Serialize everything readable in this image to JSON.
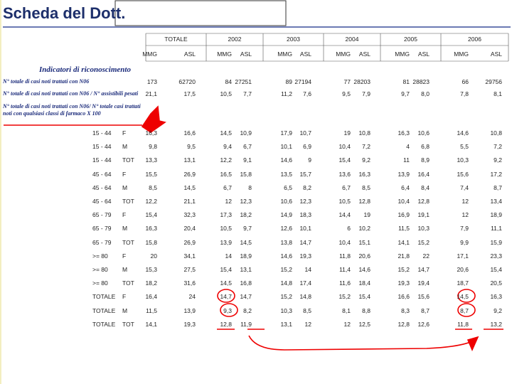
{
  "header": {
    "title": "Scheda del Dott."
  },
  "table": {
    "columns": [
      "TOTALE",
      "2002",
      "2003",
      "2004",
      "2005",
      "2006"
    ],
    "subheaders": [
      "MMG",
      "ASL",
      "MMG",
      "ASL",
      "MMG",
      "ASL",
      "MMG",
      "ASL",
      "MMG",
      "ASL",
      "MMG",
      "ASL"
    ],
    "section_title": "Indicatori di riconoscimento",
    "indicators": [
      {
        "label": "N° totale di casi noti trattati con N06",
        "values": [
          "173",
          "62720",
          "84",
          "27251",
          "89",
          "27194",
          "77",
          "28203",
          "81",
          "28823",
          "66",
          "29756"
        ]
      },
      {
        "label": "N° totale di casi noti trattati con N06 / N° assistibili pesati",
        "values": [
          "21,1",
          "17,5",
          "10,5",
          "7,7",
          "11,2",
          "7,6",
          "9,5",
          "7,9",
          "9,7",
          "8,0",
          "7,8",
          "8,1"
        ]
      },
      {
        "label": "N° totale di casi noti trattati con N06/ N° totale casi trattati noti con qualsiasi classi di farmaco X 100",
        "values": []
      }
    ],
    "rows": [
      {
        "age": "15 - 44",
        "sex": "F",
        "values": [
          "16,3",
          "16,6",
          "14,5",
          "10,9",
          "17,9",
          "10,7",
          "19",
          "10,8",
          "16,3",
          "10,6",
          "14,6",
          "10,8"
        ]
      },
      {
        "age": "15 - 44",
        "sex": "M",
        "values": [
          "9,8",
          "9,5",
          "9,4",
          "6,7",
          "10,1",
          "6,9",
          "10,4",
          "7,2",
          "4",
          "6,8",
          "5,5",
          "7,2"
        ]
      },
      {
        "age": "15 - 44",
        "sex": "TOT",
        "values": [
          "13,3",
          "13,1",
          "12,2",
          "9,1",
          "14,6",
          "9",
          "15,4",
          "9,2",
          "11",
          "8,9",
          "10,3",
          "9,2"
        ]
      },
      {
        "age": "45 - 64",
        "sex": "F",
        "values": [
          "15,5",
          "26,9",
          "16,5",
          "15,8",
          "13,5",
          "15,7",
          "13,6",
          "16,3",
          "13,9",
          "16,4",
          "15,6",
          "17,2"
        ]
      },
      {
        "age": "45 - 64",
        "sex": "M",
        "values": [
          "8,5",
          "14,5",
          "6,7",
          "8",
          "6,5",
          "8,2",
          "6,7",
          "8,5",
          "6,4",
          "8,4",
          "7,4",
          "8,7"
        ]
      },
      {
        "age": "45 - 64",
        "sex": "TOT",
        "values": [
          "12,2",
          "21,1",
          "12",
          "12,3",
          "10,6",
          "12,3",
          "10,5",
          "12,8",
          "10,4",
          "12,8",
          "12",
          "13,4"
        ]
      },
      {
        "age": "65 - 79",
        "sex": "F",
        "values": [
          "15,4",
          "32,3",
          "17,3",
          "18,2",
          "14,9",
          "18,3",
          "14,4",
          "19",
          "16,9",
          "19,1",
          "12",
          "18,9"
        ]
      },
      {
        "age": "65 - 79",
        "sex": "M",
        "values": [
          "16,3",
          "20,4",
          "10,5",
          "9,7",
          "12,6",
          "10,1",
          "6",
          "10,2",
          "11,5",
          "10,3",
          "7,9",
          "11,1"
        ]
      },
      {
        "age": "65 - 79",
        "sex": "TOT",
        "values": [
          "15,8",
          "26,9",
          "13,9",
          "14,5",
          "13,8",
          "14,7",
          "10,4",
          "15,1",
          "14,1",
          "15,2",
          "9,9",
          "15,9"
        ]
      },
      {
        "age": ">= 80",
        "sex": "F",
        "values": [
          "20",
          "34,1",
          "14",
          "18,9",
          "14,6",
          "19,3",
          "11,8",
          "20,6",
          "21,8",
          "22",
          "17,1",
          "23,3"
        ]
      },
      {
        "age": ">= 80",
        "sex": "M",
        "values": [
          "15,3",
          "27,5",
          "15,4",
          "13,1",
          "15,2",
          "14",
          "11,4",
          "14,6",
          "15,2",
          "14,7",
          "20,6",
          "15,4"
        ]
      },
      {
        "age": ">= 80",
        "sex": "TOT",
        "values": [
          "18,2",
          "31,6",
          "14,5",
          "16,8",
          "14,8",
          "17,4",
          "11,6",
          "18,4",
          "19,3",
          "19,4",
          "18,7",
          "20,5"
        ]
      },
      {
        "age": "TOTALE",
        "sex": "F",
        "values": [
          "16,4",
          "24",
          "14,7",
          "14,7",
          "15,2",
          "14,8",
          "15,2",
          "15,4",
          "16,6",
          "15,6",
          "14,5",
          "16,3"
        ]
      },
      {
        "age": "TOTALE",
        "sex": "M",
        "values": [
          "11,5",
          "13,9",
          "9,3",
          "8,2",
          "10,3",
          "8,5",
          "8,1",
          "8,8",
          "8,3",
          "8,7",
          "8,7",
          "9,2"
        ]
      },
      {
        "age": "TOTALE",
        "sex": "TOT",
        "values": [
          "14,1",
          "19,3",
          "12,8",
          "11,9",
          "13,1",
          "12",
          "12",
          "12,5",
          "12,8",
          "12,6",
          "11,8",
          "13,2"
        ]
      }
    ]
  }
}
